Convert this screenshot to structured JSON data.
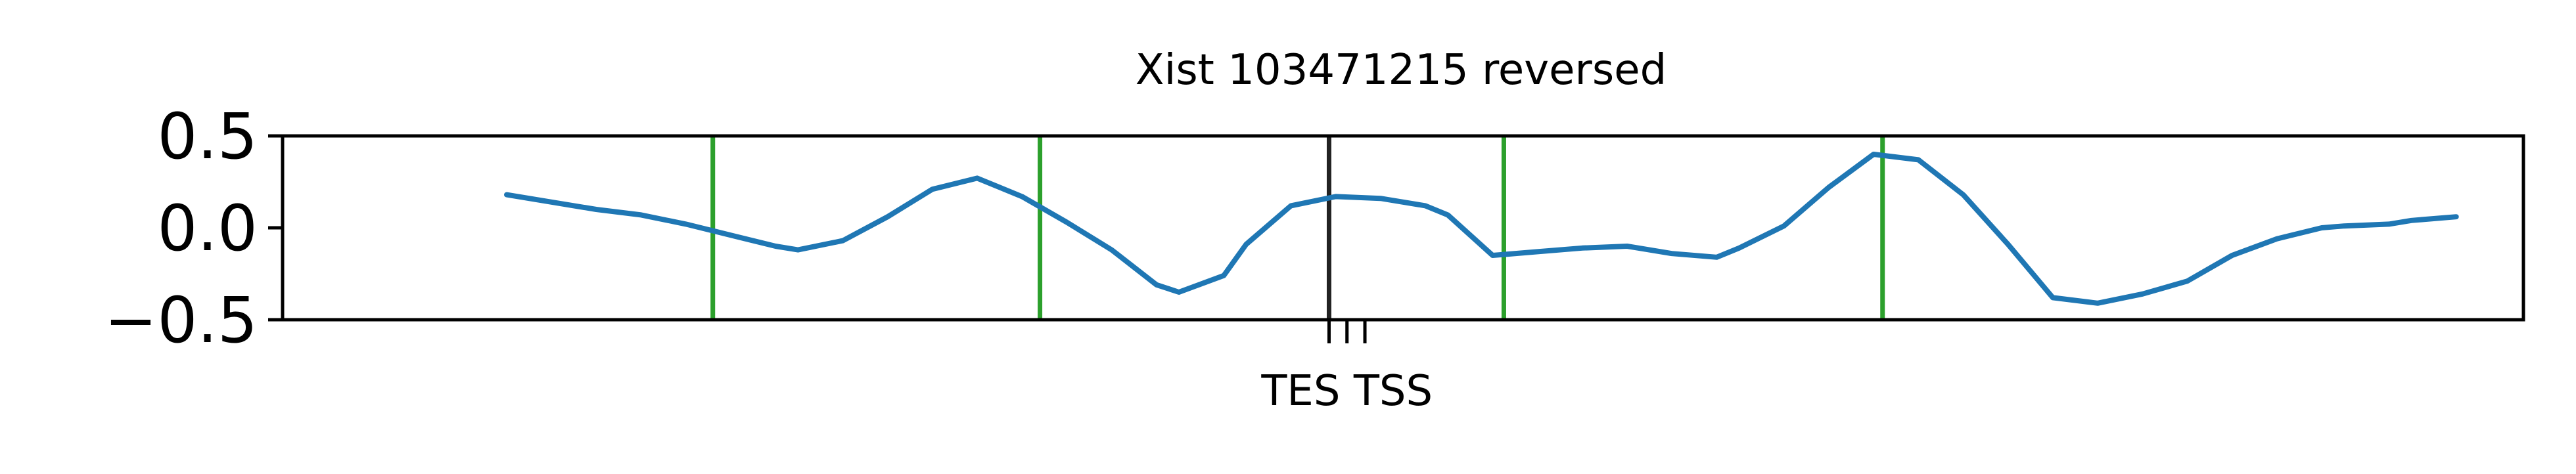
{
  "chart_data": {
    "type": "line",
    "title": "Xist 103471215 reversed",
    "xlabel": "",
    "ylabel": "",
    "ylim": [
      -0.5,
      0.5
    ],
    "y_ticks": [
      {
        "value": 0.5,
        "label": "0.5"
      },
      {
        "value": 0.0,
        "label": "0.0"
      },
      {
        "value": -0.5,
        "label": "−0.5"
      }
    ],
    "x_ticks": [
      {
        "x": 0.467,
        "label": "TES"
      },
      {
        "x": 0.475,
        "label": ""
      },
      {
        "x": 0.483,
        "label": "TSS"
      }
    ],
    "x_tick_label_text": "TES TSS",
    "grid": false,
    "series": [
      {
        "color": "#1f77b4",
        "x": [
          0.1,
          0.12,
          0.14,
          0.16,
          0.18,
          0.2,
          0.22,
          0.23,
          0.25,
          0.27,
          0.29,
          0.31,
          0.33,
          0.35,
          0.37,
          0.39,
          0.4,
          0.42,
          0.43,
          0.45,
          0.47,
          0.49,
          0.51,
          0.52,
          0.54,
          0.56,
          0.58,
          0.6,
          0.62,
          0.64,
          0.65,
          0.67,
          0.69,
          0.71,
          0.73,
          0.75,
          0.77,
          0.79,
          0.81,
          0.83,
          0.85,
          0.87,
          0.89,
          0.91,
          0.92,
          0.94,
          0.95,
          0.97
        ],
        "y": [
          0.18,
          0.14,
          0.1,
          0.07,
          0.02,
          -0.04,
          -0.1,
          -0.12,
          -0.07,
          0.06,
          0.21,
          0.27,
          0.17,
          0.03,
          -0.12,
          -0.31,
          -0.35,
          -0.26,
          -0.09,
          0.12,
          0.17,
          0.16,
          0.12,
          0.07,
          -0.15,
          -0.13,
          -0.11,
          -0.1,
          -0.14,
          -0.16,
          -0.11,
          0.01,
          0.22,
          0.4,
          0.37,
          0.18,
          -0.09,
          -0.38,
          -0.41,
          -0.36,
          -0.29,
          -0.15,
          -0.06,
          0.0,
          0.01,
          0.02,
          0.04,
          0.06
        ]
      }
    ],
    "vertical_lines": [
      {
        "x": 0.192,
        "color": "#2ca02c"
      },
      {
        "x": 0.338,
        "color": "#2ca02c"
      },
      {
        "x": 0.467,
        "color": "#222222"
      },
      {
        "x": 0.545,
        "color": "#2ca02c"
      },
      {
        "x": 0.714,
        "color": "#2ca02c"
      }
    ]
  }
}
